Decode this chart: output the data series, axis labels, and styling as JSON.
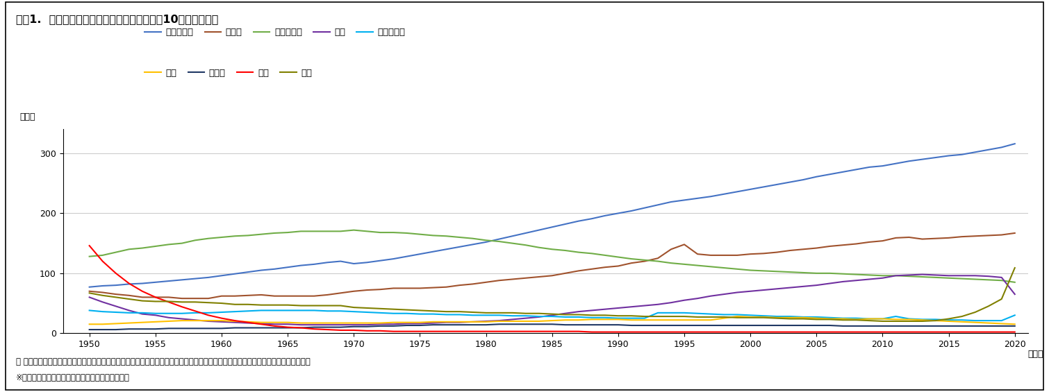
{
  "title": "図表1.  日本の主な死因別死亡率の推移（人口10万人あたり）",
  "ylabel": "（人）",
  "xlabel_suffix": "（年）",
  "footnote1": "＊ 悪性新生物は腫瘍を指す。心疾患は高血圧性のものを除く。死亡率には、年齢調整（人口の年齢構成の変化の調整）をしていない。",
  "footnote2": "※「人口動態統計」（厚生労働省）より、筆者作成",
  "ylim": [
    0,
    340
  ],
  "yticks": [
    0,
    100,
    200,
    300
  ],
  "xticks": [
    1950,
    1955,
    1960,
    1965,
    1970,
    1975,
    1980,
    1985,
    1990,
    1995,
    2000,
    2005,
    2010,
    2015,
    2020
  ],
  "series": {
    "悪性新生物": {
      "color": "#4472C4",
      "years": [
        1950,
        1951,
        1952,
        1953,
        1954,
        1955,
        1956,
        1957,
        1958,
        1959,
        1960,
        1961,
        1962,
        1963,
        1964,
        1965,
        1966,
        1967,
        1968,
        1969,
        1970,
        1971,
        1972,
        1973,
        1974,
        1975,
        1976,
        1977,
        1978,
        1979,
        1980,
        1981,
        1982,
        1983,
        1984,
        1985,
        1986,
        1987,
        1988,
        1989,
        1990,
        1991,
        1992,
        1993,
        1994,
        1995,
        1996,
        1997,
        1998,
        1999,
        2000,
        2001,
        2002,
        2003,
        2004,
        2005,
        2006,
        2007,
        2008,
        2009,
        2010,
        2011,
        2012,
        2013,
        2014,
        2015,
        2016,
        2017,
        2018,
        2019,
        2020
      ],
      "values": [
        77,
        79,
        80,
        82,
        83,
        85,
        87,
        89,
        91,
        93,
        96,
        99,
        102,
        105,
        107,
        110,
        113,
        115,
        118,
        120,
        116,
        118,
        121,
        124,
        128,
        132,
        136,
        140,
        144,
        148,
        152,
        157,
        162,
        167,
        172,
        177,
        182,
        187,
        191,
        196,
        200,
        204,
        209,
        214,
        219,
        222,
        225,
        228,
        232,
        236,
        240,
        244,
        248,
        252,
        256,
        261,
        265,
        269,
        273,
        277,
        279,
        283,
        287,
        290,
        293,
        296,
        298,
        302,
        306,
        310,
        316
      ]
    },
    "心疾患": {
      "color": "#A0522D",
      "years": [
        1950,
        1951,
        1952,
        1953,
        1954,
        1955,
        1956,
        1957,
        1958,
        1959,
        1960,
        1961,
        1962,
        1963,
        1964,
        1965,
        1966,
        1967,
        1968,
        1969,
        1970,
        1971,
        1972,
        1973,
        1974,
        1975,
        1976,
        1977,
        1978,
        1979,
        1980,
        1981,
        1982,
        1983,
        1984,
        1985,
        1986,
        1987,
        1988,
        1989,
        1990,
        1991,
        1992,
        1993,
        1994,
        1995,
        1996,
        1997,
        1998,
        1999,
        2000,
        2001,
        2002,
        2003,
        2004,
        2005,
        2006,
        2007,
        2008,
        2009,
        2010,
        2011,
        2012,
        2013,
        2014,
        2015,
        2016,
        2017,
        2018,
        2019,
        2020
      ],
      "values": [
        70,
        68,
        65,
        63,
        60,
        60,
        60,
        58,
        58,
        58,
        62,
        62,
        63,
        64,
        62,
        62,
        62,
        62,
        64,
        67,
        70,
        72,
        73,
        75,
        75,
        75,
        76,
        77,
        80,
        82,
        85,
        88,
        90,
        92,
        94,
        96,
        100,
        104,
        107,
        110,
        112,
        117,
        120,
        125,
        140,
        148,
        132,
        130,
        130,
        130,
        132,
        133,
        135,
        138,
        140,
        142,
        145,
        147,
        149,
        152,
        154,
        159,
        160,
        157,
        158,
        159,
        161,
        162,
        163,
        164,
        167
      ]
    },
    "脳血管疾患": {
      "color": "#70AD47",
      "years": [
        1950,
        1951,
        1952,
        1953,
        1954,
        1955,
        1956,
        1957,
        1958,
        1959,
        1960,
        1961,
        1962,
        1963,
        1964,
        1965,
        1966,
        1967,
        1968,
        1969,
        1970,
        1971,
        1972,
        1973,
        1974,
        1975,
        1976,
        1977,
        1978,
        1979,
        1980,
        1981,
        1982,
        1983,
        1984,
        1985,
        1986,
        1987,
        1988,
        1989,
        1990,
        1991,
        1992,
        1993,
        1994,
        1995,
        1996,
        1997,
        1998,
        1999,
        2000,
        2001,
        2002,
        2003,
        2004,
        2005,
        2006,
        2007,
        2008,
        2009,
        2010,
        2011,
        2012,
        2013,
        2014,
        2015,
        2016,
        2017,
        2018,
        2019,
        2020
      ],
      "values": [
        128,
        130,
        135,
        140,
        142,
        145,
        148,
        150,
        155,
        158,
        160,
        162,
        163,
        165,
        167,
        168,
        170,
        170,
        170,
        170,
        172,
        170,
        168,
        168,
        167,
        165,
        163,
        162,
        160,
        158,
        155,
        153,
        150,
        147,
        143,
        140,
        138,
        135,
        133,
        130,
        127,
        124,
        122,
        120,
        117,
        115,
        113,
        111,
        109,
        107,
        105,
        104,
        103,
        102,
        101,
        100,
        100,
        99,
        98,
        97,
        96,
        96,
        95,
        94,
        93,
        92,
        91,
        90,
        89,
        88,
        85
      ]
    },
    "肺炎": {
      "color": "#7030A0",
      "years": [
        1950,
        1951,
        1952,
        1953,
        1954,
        1955,
        1956,
        1957,
        1958,
        1959,
        1960,
        1961,
        1962,
        1963,
        1964,
        1965,
        1966,
        1967,
        1968,
        1969,
        1970,
        1971,
        1972,
        1973,
        1974,
        1975,
        1976,
        1977,
        1978,
        1979,
        1980,
        1981,
        1982,
        1983,
        1984,
        1985,
        1986,
        1987,
        1988,
        1989,
        1990,
        1991,
        1992,
        1993,
        1994,
        1995,
        1996,
        1997,
        1998,
        1999,
        2000,
        2001,
        2002,
        2003,
        2004,
        2005,
        2006,
        2007,
        2008,
        2009,
        2010,
        2011,
        2012,
        2013,
        2014,
        2015,
        2016,
        2017,
        2018,
        2019,
        2020
      ],
      "values": [
        60,
        52,
        45,
        38,
        32,
        30,
        26,
        24,
        22,
        20,
        19,
        18,
        17,
        16,
        15,
        15,
        14,
        14,
        14,
        14,
        14,
        14,
        15,
        15,
        16,
        16,
        17,
        18,
        18,
        19,
        20,
        21,
        23,
        25,
        27,
        30,
        33,
        36,
        38,
        40,
        42,
        44,
        46,
        48,
        51,
        55,
        58,
        62,
        65,
        68,
        70,
        72,
        74,
        76,
        78,
        80,
        83,
        86,
        88,
        90,
        92,
        96,
        97,
        98,
        97,
        96,
        96,
        96,
        95,
        93,
        65
      ]
    },
    "不慮の事故": {
      "color": "#00B0F0",
      "years": [
        1950,
        1951,
        1952,
        1953,
        1954,
        1955,
        1956,
        1957,
        1958,
        1959,
        1960,
        1961,
        1962,
        1963,
        1964,
        1965,
        1966,
        1967,
        1968,
        1969,
        1970,
        1971,
        1972,
        1973,
        1974,
        1975,
        1976,
        1977,
        1978,
        1979,
        1980,
        1981,
        1982,
        1983,
        1984,
        1985,
        1986,
        1987,
        1988,
        1989,
        1990,
        1991,
        1992,
        1993,
        1994,
        1995,
        1996,
        1997,
        1998,
        1999,
        2000,
        2001,
        2002,
        2003,
        2004,
        2005,
        2006,
        2007,
        2008,
        2009,
        2010,
        2011,
        2012,
        2013,
        2014,
        2015,
        2016,
        2017,
        2018,
        2019,
        2020
      ],
      "values": [
        38,
        36,
        35,
        34,
        34,
        33,
        33,
        33,
        34,
        34,
        35,
        36,
        37,
        38,
        38,
        38,
        38,
        38,
        37,
        37,
        36,
        35,
        34,
        33,
        33,
        32,
        32,
        31,
        31,
        30,
        30,
        30,
        29,
        29,
        28,
        28,
        27,
        27,
        26,
        26,
        25,
        25,
        25,
        34,
        34,
        34,
        33,
        32,
        31,
        31,
        30,
        29,
        28,
        28,
        27,
        27,
        26,
        25,
        25,
        24,
        24,
        28,
        24,
        23,
        23,
        22,
        22,
        21,
        21,
        21,
        30
      ]
    },
    "自殺": {
      "color": "#FFC000",
      "years": [
        1950,
        1951,
        1952,
        1953,
        1954,
        1955,
        1956,
        1957,
        1958,
        1959,
        1960,
        1961,
        1962,
        1963,
        1964,
        1965,
        1966,
        1967,
        1968,
        1969,
        1970,
        1971,
        1972,
        1973,
        1974,
        1975,
        1976,
        1977,
        1978,
        1979,
        1980,
        1981,
        1982,
        1983,
        1984,
        1985,
        1986,
        1987,
        1988,
        1989,
        1990,
        1991,
        1992,
        1993,
        1994,
        1995,
        1996,
        1997,
        1998,
        1999,
        2000,
        2001,
        2002,
        2003,
        2004,
        2005,
        2006,
        2007,
        2008,
        2009,
        2010,
        2011,
        2012,
        2013,
        2014,
        2015,
        2016,
        2017,
        2018,
        2019,
        2020
      ],
      "values": [
        15,
        15,
        16,
        17,
        18,
        19,
        20,
        21,
        21,
        21,
        21,
        20,
        19,
        18,
        18,
        18,
        17,
        17,
        17,
        17,
        17,
        17,
        17,
        18,
        18,
        18,
        19,
        19,
        19,
        19,
        19,
        20,
        20,
        20,
        20,
        21,
        22,
        22,
        23,
        23,
        23,
        22,
        22,
        22,
        22,
        22,
        22,
        22,
        25,
        28,
        27,
        27,
        26,
        26,
        26,
        25,
        24,
        24,
        23,
        24,
        24,
        23,
        23,
        22,
        21,
        20,
        19,
        18,
        17,
        16,
        15
      ]
    },
    "肝疾患": {
      "color": "#203864",
      "years": [
        1950,
        1951,
        1952,
        1953,
        1954,
        1955,
        1956,
        1957,
        1958,
        1959,
        1960,
        1961,
        1962,
        1963,
        1964,
        1965,
        1966,
        1967,
        1968,
        1969,
        1970,
        1971,
        1972,
        1973,
        1974,
        1975,
        1976,
        1977,
        1978,
        1979,
        1980,
        1981,
        1982,
        1983,
        1984,
        1985,
        1986,
        1987,
        1988,
        1989,
        1990,
        1991,
        1992,
        1993,
        1994,
        1995,
        1996,
        1997,
        1998,
        1999,
        2000,
        2001,
        2002,
        2003,
        2004,
        2005,
        2006,
        2007,
        2008,
        2009,
        2010,
        2011,
        2012,
        2013,
        2014,
        2015,
        2016,
        2017,
        2018,
        2019,
        2020
      ],
      "values": [
        6,
        6,
        6,
        7,
        7,
        7,
        8,
        8,
        8,
        8,
        8,
        9,
        9,
        9,
        9,
        9,
        9,
        10,
        10,
        10,
        11,
        11,
        12,
        12,
        13,
        13,
        14,
        14,
        14,
        14,
        14,
        15,
        15,
        15,
        15,
        15,
        14,
        14,
        14,
        14,
        14,
        13,
        13,
        13,
        13,
        13,
        13,
        13,
        13,
        13,
        13,
        13,
        13,
        13,
        13,
        13,
        13,
        12,
        12,
        12,
        12,
        12,
        12,
        12,
        12,
        12,
        12,
        12,
        12,
        12,
        12
      ]
    },
    "結核": {
      "color": "#FF0000",
      "years": [
        1950,
        1951,
        1952,
        1953,
        1954,
        1955,
        1956,
        1957,
        1958,
        1959,
        1960,
        1961,
        1962,
        1963,
        1964,
        1965,
        1966,
        1967,
        1968,
        1969,
        1970,
        1971,
        1972,
        1973,
        1974,
        1975,
        1976,
        1977,
        1978,
        1979,
        1980,
        1981,
        1982,
        1983,
        1984,
        1985,
        1986,
        1987,
        1988,
        1989,
        1990,
        1991,
        1992,
        1993,
        1994,
        1995,
        1996,
        1997,
        1998,
        1999,
        2000,
        2001,
        2002,
        2003,
        2004,
        2005,
        2006,
        2007,
        2008,
        2009,
        2010,
        2011,
        2012,
        2013,
        2014,
        2015,
        2016,
        2017,
        2018,
        2019,
        2020
      ],
      "values": [
        146,
        120,
        100,
        83,
        70,
        60,
        52,
        44,
        37,
        30,
        25,
        21,
        18,
        15,
        12,
        10,
        9,
        7,
        6,
        5,
        5,
        4,
        4,
        3,
        3,
        3,
        3,
        3,
        3,
        3,
        3,
        3,
        3,
        3,
        3,
        3,
        3,
        3,
        2,
        2,
        2,
        2,
        2,
        2,
        2,
        2,
        2,
        2,
        2,
        2,
        2,
        2,
        2,
        2,
        2,
        2,
        2,
        2,
        2,
        2,
        2,
        2,
        2,
        2,
        2,
        2,
        2,
        2,
        2,
        2,
        2
      ]
    },
    "老衰": {
      "color": "#808000",
      "years": [
        1950,
        1951,
        1952,
        1953,
        1954,
        1955,
        1956,
        1957,
        1958,
        1959,
        1960,
        1961,
        1962,
        1963,
        1964,
        1965,
        1966,
        1967,
        1968,
        1969,
        1970,
        1971,
        1972,
        1973,
        1974,
        1975,
        1976,
        1977,
        1978,
        1979,
        1980,
        1981,
        1982,
        1983,
        1984,
        1985,
        1986,
        1987,
        1988,
        1989,
        1990,
        1991,
        1992,
        1993,
        1994,
        1995,
        1996,
        1997,
        1998,
        1999,
        2000,
        2001,
        2002,
        2003,
        2004,
        2005,
        2006,
        2007,
        2008,
        2009,
        2010,
        2011,
        2012,
        2013,
        2014,
        2015,
        2016,
        2017,
        2018,
        2019,
        2020
      ],
      "values": [
        67,
        63,
        60,
        57,
        54,
        53,
        53,
        52,
        52,
        51,
        50,
        48,
        48,
        47,
        47,
        47,
        46,
        46,
        46,
        46,
        43,
        42,
        41,
        40,
        39,
        38,
        37,
        36,
        36,
        35,
        34,
        34,
        34,
        33,
        33,
        32,
        31,
        31,
        30,
        30,
        29,
        29,
        28,
        28,
        28,
        28,
        27,
        27,
        27,
        26,
        26,
        26,
        25,
        24,
        24,
        23,
        23,
        22,
        22,
        21,
        20,
        20,
        20,
        20,
        21,
        24,
        28,
        35,
        45,
        57,
        109
      ]
    }
  },
  "legend_row1": [
    "悪性新生物",
    "心疾患",
    "脳血管疾患",
    "肺炎",
    "不慮の事故"
  ],
  "legend_row2": [
    "自殺",
    "肝疾患",
    "結核",
    "老衰"
  ],
  "background_color": "#FFFFFF",
  "grid_color": "#CCCCCC"
}
